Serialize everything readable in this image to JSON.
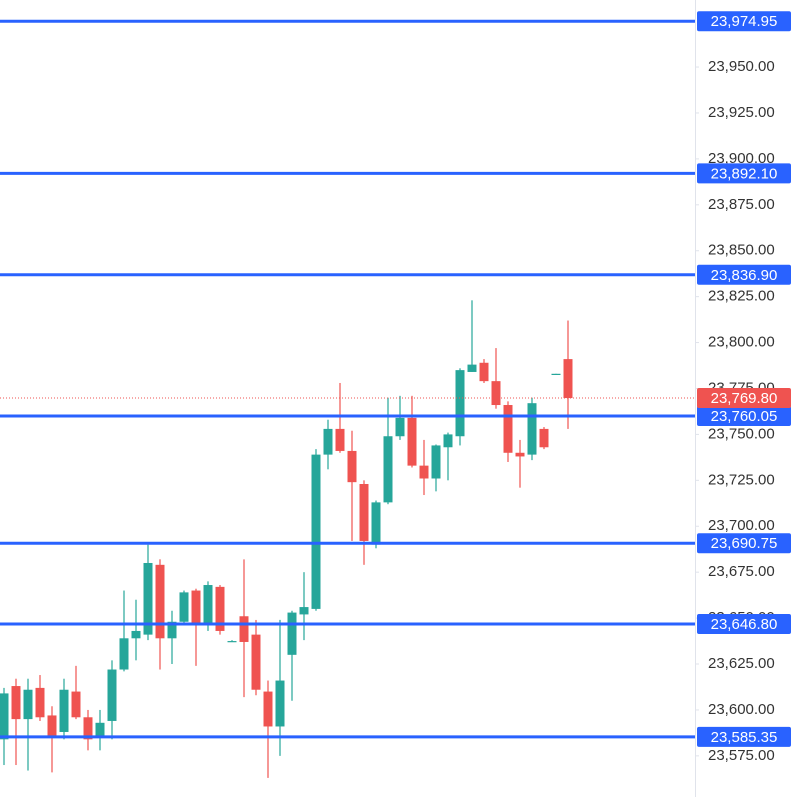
{
  "chart_data": {
    "type": "candlestick",
    "open": [
      23584,
      23613,
      23595,
      23612,
      23597,
      23588,
      23610,
      23596,
      23585,
      23594,
      23622,
      23639,
      23641,
      23679,
      23639,
      23648,
      23665,
      23647,
      23667,
      23637,
      23651,
      23641,
      23610,
      23591,
      23630,
      23652,
      23655,
      23739,
      23753,
      23741,
      23723,
      23690,
      23713,
      23749,
      23759,
      23733,
      23726,
      23743,
      23749,
      23784,
      23789,
      23779,
      23766,
      23740,
      23739,
      23753,
      23782.5,
      23791
    ],
    "high": [
      23612,
      23617,
      23617,
      23619,
      23602,
      23617,
      23624,
      23600,
      23600,
      23627,
      23665,
      23660,
      23690,
      23682,
      23654,
      23665,
      23666,
      23670,
      23668,
      23638,
      23682,
      23649,
      23616,
      23649,
      23654,
      23675,
      23742,
      23758,
      23778,
      23752,
      23725,
      23714,
      23770,
      23771,
      23771,
      23747,
      23744.5,
      23751,
      23786,
      23823,
      23791,
      23797,
      23768,
      23747,
      23770,
      23754,
      23783,
      23812
    ],
    "low": [
      23570,
      23570,
      23567,
      23594,
      23566,
      23584,
      23595,
      23578,
      23578,
      23584,
      23621,
      23627,
      23638,
      23622,
      23625,
      23646,
      23624,
      23643,
      23641,
      23637,
      23607,
      23608,
      23563,
      23575,
      23605,
      23638,
      23654,
      23731,
      23740,
      23692,
      23679,
      23688,
      23712,
      23747,
      23732,
      23717,
      23719,
      23725,
      23744,
      23784,
      23778,
      23764,
      23735,
      23721,
      23736,
      23742,
      23782.5,
      23753
    ],
    "close": [
      23609,
      23595,
      23611,
      23596,
      23586,
      23611,
      23596,
      23584,
      23593,
      23622,
      23639,
      23643,
      23680,
      23639,
      23648,
      23664,
      23646,
      23668,
      23643,
      23637.5,
      23637,
      23611,
      23591,
      23616,
      23653,
      23656,
      23739,
      23753,
      23741,
      23724,
      23692,
      23713,
      23749,
      23759,
      23733,
      23726,
      23744,
      23750,
      23785,
      23788,
      23779,
      23766,
      23740,
      23738,
      23767,
      23743,
      23783,
      23769.8
    ],
    "up_color": "#26a69a",
    "down_color": "#ef5350",
    "ylim": [
      23552.6,
      23986.5
    ],
    "yticks": [
      {
        "value": 23575,
        "label": "23,575.00"
      },
      {
        "value": 23600,
        "label": "23,600.00"
      },
      {
        "value": 23625,
        "label": "23,625.00"
      },
      {
        "value": 23650,
        "label": "23,650.00"
      },
      {
        "value": 23675,
        "label": "23,675.00"
      },
      {
        "value": 23700,
        "label": "23,700.00"
      },
      {
        "value": 23725,
        "label": "23,725.00"
      },
      {
        "value": 23750,
        "label": "23,750.00"
      },
      {
        "value": 23775,
        "label": "23,775.00"
      },
      {
        "value": 23800,
        "label": "23,800.00"
      },
      {
        "value": 23825,
        "label": "23,825.00"
      },
      {
        "value": 23850,
        "label": "23,850.00"
      },
      {
        "value": 23875,
        "label": "23,875.00"
      },
      {
        "value": 23900,
        "label": "23,900.00"
      },
      {
        "value": 23925,
        "label": "23,925.00"
      },
      {
        "value": 23950,
        "label": "23,950.00"
      }
    ],
    "levels": [
      {
        "value": 23974.95,
        "label": "23,974.95"
      },
      {
        "value": 23892.1,
        "label": "23,892.10"
      },
      {
        "value": 23836.9,
        "label": "23,836.90"
      },
      {
        "value": 23760.05,
        "label": "23,760.05"
      },
      {
        "value": 23690.75,
        "label": "23,690.75"
      },
      {
        "value": 23646.8,
        "label": "23,646.80"
      },
      {
        "value": 23585.35,
        "label": "23,585.35"
      }
    ],
    "level_color": "#2962ff",
    "last_price": {
      "value": 23769.8,
      "label": "23,769.80"
    },
    "last_color": "#ef5350"
  }
}
